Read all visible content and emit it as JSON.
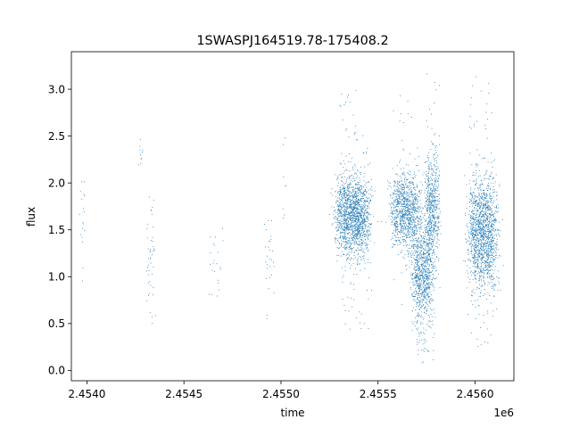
{
  "chart_data": {
    "type": "scatter",
    "title": "1SWASPJ164519.78-175408.2",
    "xlabel": "time",
    "ylabel": "flux",
    "x_offset_label": "1e6",
    "xlim": [
      2.45392,
      2.4562
    ],
    "ylim": [
      -0.11,
      3.4
    ],
    "x_ticks": [
      2.454,
      2.4545,
      2.455,
      2.4555,
      2.456
    ],
    "x_tick_labels": [
      "2.4540",
      "2.4545",
      "2.4550",
      "2.4555",
      "2.4560"
    ],
    "y_ticks": [
      0.0,
      0.5,
      1.0,
      1.5,
      2.0,
      2.5,
      3.0
    ],
    "y_tick_labels": [
      "0.0",
      "0.5",
      "1.0",
      "1.5",
      "2.0",
      "2.5",
      "3.0"
    ],
    "grid": false,
    "marker_color": "#1f77b4",
    "series": [
      {
        "clusters": [
          {
            "x_center": 2.45398,
            "x_width": 2e-05,
            "y_center": 1.55,
            "y_spread": 0.35,
            "y_min": 0.85,
            "y_max": 2.2,
            "count": 18
          },
          {
            "x_center": 2.45428,
            "x_width": 2e-05,
            "y_center": 2.3,
            "y_spread": 0.12,
            "y_min": 2.05,
            "y_max": 2.47,
            "count": 10
          },
          {
            "x_center": 2.45433,
            "x_width": 4e-05,
            "y_center": 1.2,
            "y_spread": 0.3,
            "y_min": 0.48,
            "y_max": 1.85,
            "count": 45
          },
          {
            "x_center": 2.45466,
            "x_width": 6e-05,
            "y_center": 1.15,
            "y_spread": 0.22,
            "y_min": 0.7,
            "y_max": 1.57,
            "count": 22
          },
          {
            "x_center": 2.45494,
            "x_width": 4e-05,
            "y_center": 1.2,
            "y_spread": 0.3,
            "y_min": 0.33,
            "y_max": 1.6,
            "count": 28
          },
          {
            "x_center": 2.45502,
            "x_width": 2e-05,
            "y_center": 2.0,
            "y_spread": 0.3,
            "y_min": 1.5,
            "y_max": 2.48,
            "count": 8
          },
          {
            "x_center": 2.45537,
            "x_width": 0.00014,
            "y_center": 1.65,
            "y_spread": 0.22,
            "y_min": 0.4,
            "y_max": 3.02,
            "count": 1600
          },
          {
            "x_center": 2.45564,
            "x_width": 0.00012,
            "y_center": 1.7,
            "y_spread": 0.2,
            "y_min": 0.7,
            "y_max": 2.95,
            "count": 1000
          },
          {
            "x_center": 2.45573,
            "x_width": 9e-05,
            "y_center": 1.05,
            "y_spread": 0.3,
            "y_min": 0.05,
            "y_max": 1.8,
            "count": 900
          },
          {
            "x_center": 2.45578,
            "x_width": 6e-05,
            "y_center": 1.75,
            "y_spread": 0.3,
            "y_min": 0.6,
            "y_max": 3.25,
            "count": 600
          },
          {
            "x_center": 2.45604,
            "x_width": 0.00012,
            "y_center": 1.45,
            "y_spread": 0.3,
            "y_min": 0.25,
            "y_max": 3.15,
            "count": 1500
          }
        ]
      }
    ]
  }
}
